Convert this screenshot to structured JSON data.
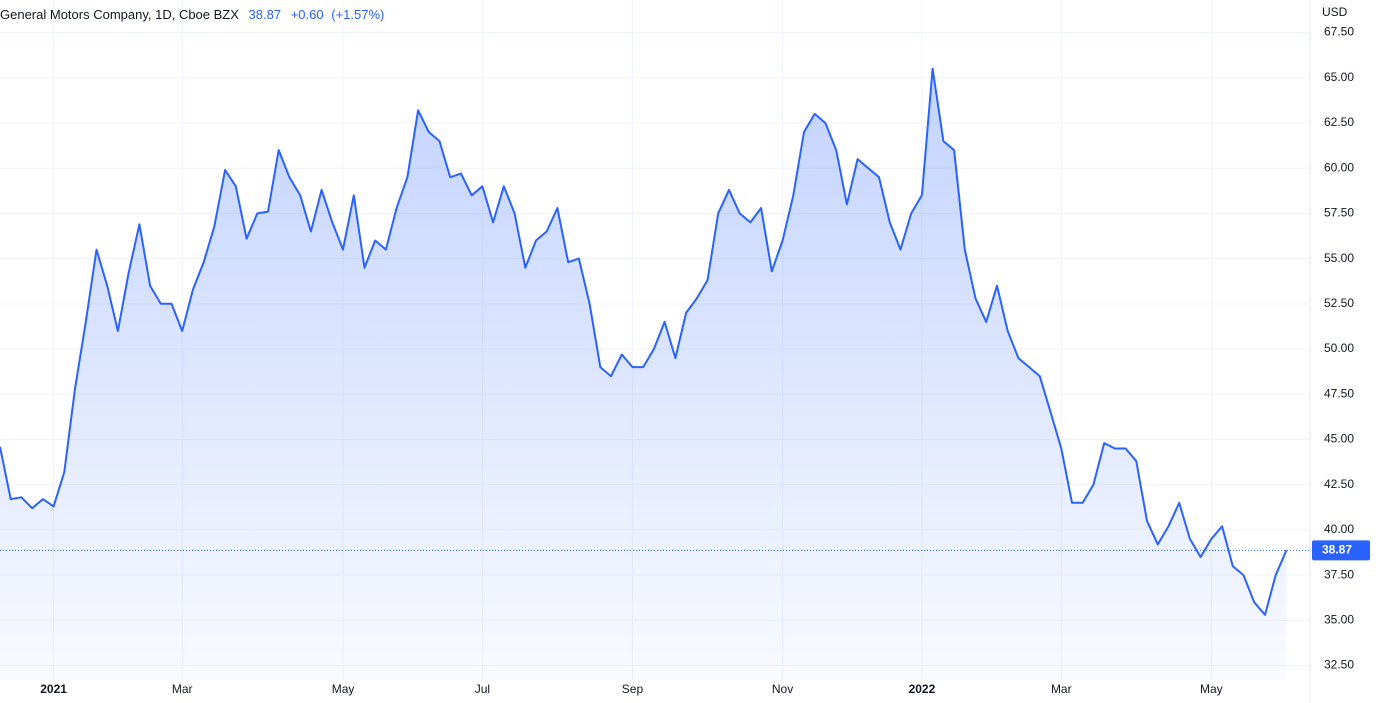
{
  "chart_data": {
    "type": "area",
    "title": "General Motors Company, 1D, Cboe BZX",
    "last_price": 38.87,
    "change": "+0.60",
    "change_percent": "(+1.57%)",
    "currency": "USD",
    "categories": [
      null,
      null,
      null,
      null,
      null,
      "2021",
      null,
      null,
      null,
      null,
      null,
      null,
      null,
      null,
      null,
      null,
      null,
      "Mar",
      null,
      null,
      null,
      null,
      null,
      null,
      null,
      null,
      null,
      null,
      null,
      null,
      null,
      null,
      "May",
      null,
      null,
      null,
      null,
      null,
      null,
      null,
      null,
      null,
      null,
      null,
      null,
      "Jul",
      null,
      null,
      null,
      null,
      null,
      null,
      null,
      null,
      null,
      null,
      null,
      null,
      null,
      "Sep",
      null,
      null,
      null,
      null,
      null,
      null,
      null,
      null,
      null,
      null,
      null,
      null,
      null,
      "Nov",
      null,
      null,
      null,
      null,
      null,
      null,
      null,
      null,
      null,
      null,
      null,
      null,
      "2022",
      null,
      null,
      null,
      null,
      null,
      null,
      null,
      null,
      null,
      null,
      null,
      null,
      "Mar",
      null,
      null,
      null,
      null,
      null,
      null,
      null,
      null,
      null,
      null,
      null,
      null,
      null,
      "May",
      null,
      null,
      null,
      null,
      null,
      null,
      null
    ],
    "series": [
      {
        "name": "GM",
        "color": "#2962ff",
        "values": [
          44.6,
          41.7,
          41.8,
          41.2,
          41.7,
          41.3,
          43.2,
          47.8,
          51.5,
          55.5,
          53.5,
          51.0,
          54.2,
          56.9,
          53.5,
          52.5,
          52.5,
          51.0,
          53.3,
          54.8,
          56.8,
          59.9,
          59.0,
          56.1,
          57.5,
          57.6,
          61.0,
          59.5,
          58.5,
          56.5,
          58.8,
          57.0,
          55.5,
          58.5,
          54.5,
          56.0,
          55.5,
          57.8,
          59.5,
          63.2,
          62.0,
          61.5,
          59.5,
          59.7,
          58.5,
          59.0,
          57.0,
          59.0,
          57.5,
          54.5,
          56.0,
          56.5,
          57.8,
          54.8,
          55.0,
          52.5,
          49.0,
          48.5,
          49.7,
          49.0,
          49.0,
          50.0,
          51.5,
          49.5,
          52.0,
          52.8,
          53.8,
          57.5,
          58.8,
          57.5,
          57.0,
          57.8,
          54.3,
          56.0,
          58.5,
          62.0,
          63.0,
          62.5,
          61.0,
          58.0,
          60.5,
          60.0,
          59.5,
          57.0,
          55.5,
          57.5,
          58.5,
          65.5,
          61.5,
          61.0,
          55.5,
          52.8,
          51.5,
          53.5,
          51.0,
          49.5,
          49.0,
          48.5,
          46.5,
          44.5,
          41.5,
          41.5,
          42.5,
          44.8,
          44.5,
          44.5,
          43.8,
          40.5,
          39.2,
          40.2,
          41.5,
          39.5,
          38.5,
          39.5,
          40.2,
          38.0,
          37.5,
          36.0,
          35.3,
          37.5,
          38.87
        ]
      }
    ],
    "ylim": [
      31.7,
      69.3
    ],
    "yticks": [
      {
        "value": 67.5,
        "label": "67.50"
      },
      {
        "value": 65,
        "label": "65.00"
      },
      {
        "value": 62.5,
        "label": "62.50"
      },
      {
        "value": 60,
        "label": "60.00"
      },
      {
        "value": 57.5,
        "label": "57.50"
      },
      {
        "value": 55,
        "label": "55.00"
      },
      {
        "value": 52.5,
        "label": "52.50"
      },
      {
        "value": 50,
        "label": "50.00"
      },
      {
        "value": 47.5,
        "label": "47.50"
      },
      {
        "value": 45,
        "label": "45.00"
      },
      {
        "value": 42.5,
        "label": "42.50"
      },
      {
        "value": 40,
        "label": "40.00"
      },
      {
        "value": 37.5,
        "label": "37.50"
      },
      {
        "value": 35,
        "label": "35.00"
      },
      {
        "value": 32.5,
        "label": "32.50"
      }
    ],
    "grid": true
  }
}
